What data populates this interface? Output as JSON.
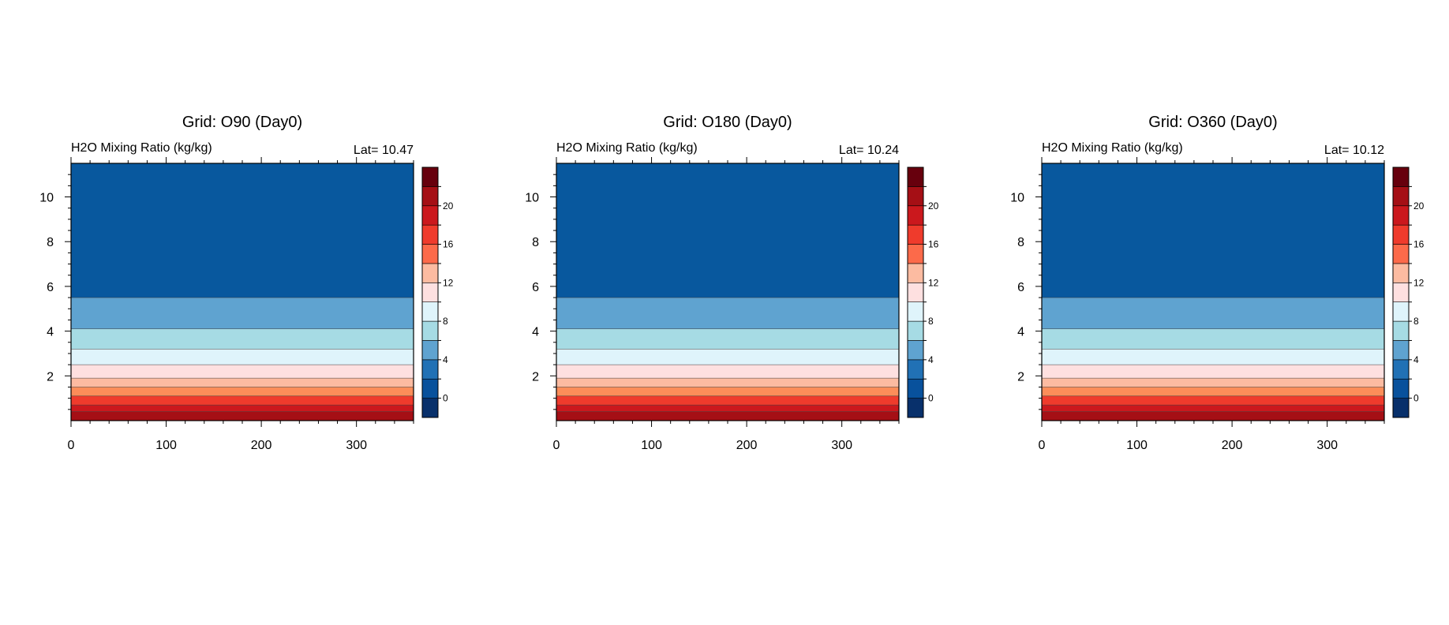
{
  "chart_data": [
    {
      "type": "heatmap",
      "title": "Grid: O90 (Day0)",
      "left_string": "H2O Mixing Ratio (kg/kg)",
      "right_string": "Lat= 10.47",
      "xlim": [
        0,
        360
      ],
      "ylim": [
        0,
        11.5
      ],
      "x_ticks": [
        0,
        100,
        200,
        300
      ],
      "y_ticks": [
        2,
        4,
        6,
        8,
        10
      ],
      "bands": [
        {
          "y0": 0.0,
          "y1": 0.4,
          "color": "#a50f15"
        },
        {
          "y0": 0.4,
          "y1": 0.7,
          "color": "#cb181d"
        },
        {
          "y0": 0.7,
          "y1": 1.1,
          "color": "#ef3b2c"
        },
        {
          "y0": 1.1,
          "y1": 1.5,
          "color": "#fc8d59"
        },
        {
          "y0": 1.5,
          "y1": 1.9,
          "color": "#fcbba1"
        },
        {
          "y0": 1.9,
          "y1": 2.5,
          "color": "#fee0e0"
        },
        {
          "y0": 2.5,
          "y1": 3.2,
          "color": "#dff4fb"
        },
        {
          "y0": 3.2,
          "y1": 4.1,
          "color": "#a6dbe4"
        },
        {
          "y0": 4.1,
          "y1": 5.5,
          "color": "#5fa3d0"
        },
        {
          "y0": 5.5,
          "y1": 11.5,
          "color": "#2171b5",
          "top_color": "#08589e"
        }
      ]
    },
    {
      "type": "heatmap",
      "title": "Grid: O180 (Day0)",
      "left_string": "H2O Mixing Ratio (kg/kg)",
      "right_string": "Lat= 10.24",
      "xlim": [
        0,
        360
      ],
      "ylim": [
        0,
        11.5
      ],
      "x_ticks": [
        0,
        100,
        200,
        300
      ],
      "y_ticks": [
        2,
        4,
        6,
        8,
        10
      ],
      "bands": [
        {
          "y0": 0.0,
          "y1": 0.4,
          "color": "#a50f15"
        },
        {
          "y0": 0.4,
          "y1": 0.7,
          "color": "#cb181d"
        },
        {
          "y0": 0.7,
          "y1": 1.1,
          "color": "#ef3b2c"
        },
        {
          "y0": 1.1,
          "y1": 1.5,
          "color": "#fc8d59"
        },
        {
          "y0": 1.5,
          "y1": 1.9,
          "color": "#fcbba1"
        },
        {
          "y0": 1.9,
          "y1": 2.5,
          "color": "#fee0e0"
        },
        {
          "y0": 2.5,
          "y1": 3.2,
          "color": "#dff4fb"
        },
        {
          "y0": 3.2,
          "y1": 4.1,
          "color": "#a6dbe4"
        },
        {
          "y0": 4.1,
          "y1": 5.5,
          "color": "#5fa3d0"
        },
        {
          "y0": 5.5,
          "y1": 11.5,
          "color": "#2171b5",
          "top_color": "#08589e"
        }
      ]
    },
    {
      "type": "heatmap",
      "title": "Grid: O360 (Day0)",
      "left_string": "H2O Mixing Ratio (kg/kg)",
      "right_string": "Lat= 10.12",
      "xlim": [
        0,
        360
      ],
      "ylim": [
        0,
        11.5
      ],
      "x_ticks": [
        0,
        100,
        200,
        300
      ],
      "y_ticks": [
        2,
        4,
        6,
        8,
        10
      ],
      "bands": [
        {
          "y0": 0.0,
          "y1": 0.4,
          "color": "#a50f15"
        },
        {
          "y0": 0.4,
          "y1": 0.7,
          "color": "#cb181d"
        },
        {
          "y0": 0.7,
          "y1": 1.1,
          "color": "#ef3b2c"
        },
        {
          "y0": 1.1,
          "y1": 1.5,
          "color": "#fc8d59"
        },
        {
          "y0": 1.5,
          "y1": 1.9,
          "color": "#fcbba1"
        },
        {
          "y0": 1.9,
          "y1": 2.5,
          "color": "#fee0e0"
        },
        {
          "y0": 2.5,
          "y1": 3.2,
          "color": "#dff4fb"
        },
        {
          "y0": 3.2,
          "y1": 4.1,
          "color": "#a6dbe4"
        },
        {
          "y0": 4.1,
          "y1": 5.5,
          "color": "#5fa3d0"
        },
        {
          "y0": 5.5,
          "y1": 11.5,
          "color": "#2171b5",
          "top_color": "#08589e"
        }
      ]
    }
  ],
  "colorbar": {
    "colors": [
      "#08306b",
      "#08519c",
      "#2171b5",
      "#5fa3d0",
      "#a6dbe4",
      "#dff4fb",
      "#fee0e0",
      "#fcbba1",
      "#fc6a4a",
      "#ef3b2c",
      "#cb181d",
      "#a50f15",
      "#67000d"
    ],
    "labels": [
      "0",
      "4",
      "8",
      "12",
      "16",
      "20"
    ]
  }
}
